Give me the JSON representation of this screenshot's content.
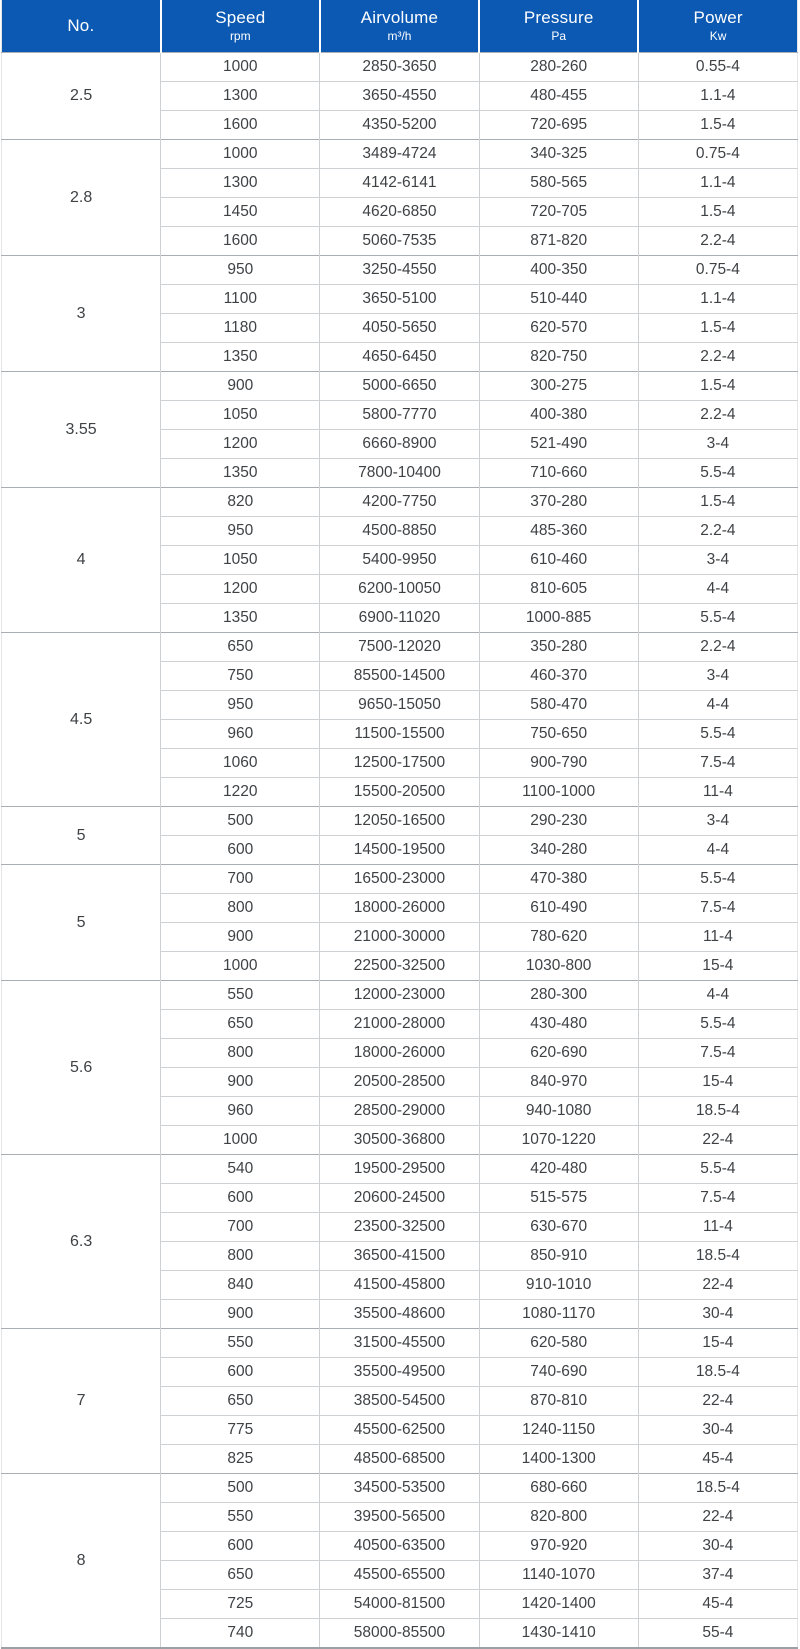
{
  "colors": {
    "header_bg": "#0c59b4",
    "header_text": "#ffffff",
    "cell_text": "#3e4245",
    "inner_border": "#cdd1d4",
    "group_border": "#a9aeb2",
    "bottom_border": "#9aa0a4"
  },
  "chart_data": {
    "type": "table",
    "title": "",
    "legend_position": "none",
    "grid": true,
    "columns": [
      {
        "id": "no",
        "label": "No.",
        "unit": ""
      },
      {
        "id": "speed",
        "label": "Speed",
        "unit": "rpm"
      },
      {
        "id": "airvolume",
        "label": "Airvolume",
        "unit": "m³/h"
      },
      {
        "id": "pressure",
        "label": "Pressure",
        "unit": "Pa"
      },
      {
        "id": "power",
        "label": "Power",
        "unit": "Kw"
      }
    ],
    "groups": [
      {
        "no": "2.5",
        "rows": [
          [
            "1000",
            "2850-3650",
            "280-260",
            "0.55-4"
          ],
          [
            "1300",
            "3650-4550",
            "480-455",
            "1.1-4"
          ],
          [
            "1600",
            "4350-5200",
            "720-695",
            "1.5-4"
          ]
        ]
      },
      {
        "no": "2.8",
        "rows": [
          [
            "1000",
            "3489-4724",
            "340-325",
            "0.75-4"
          ],
          [
            "1300",
            "4142-6141",
            "580-565",
            "1.1-4"
          ],
          [
            "1450",
            "4620-6850",
            "720-705",
            "1.5-4"
          ],
          [
            "1600",
            "5060-7535",
            "871-820",
            "2.2-4"
          ]
        ]
      },
      {
        "no": "3",
        "rows": [
          [
            "950",
            "3250-4550",
            "400-350",
            "0.75-4"
          ],
          [
            "1100",
            "3650-5100",
            "510-440",
            "1.1-4"
          ],
          [
            "1180",
            "4050-5650",
            "620-570",
            "1.5-4"
          ],
          [
            "1350",
            "4650-6450",
            "820-750",
            "2.2-4"
          ]
        ]
      },
      {
        "no": "3.55",
        "rows": [
          [
            "900",
            "5000-6650",
            "300-275",
            "1.5-4"
          ],
          [
            "1050",
            "5800-7770",
            "400-380",
            "2.2-4"
          ],
          [
            "1200",
            "6660-8900",
            "521-490",
            "3-4"
          ],
          [
            "1350",
            "7800-10400",
            "710-660",
            "5.5-4"
          ]
        ]
      },
      {
        "no": "4",
        "rows": [
          [
            "820",
            "4200-7750",
            "370-280",
            "1.5-4"
          ],
          [
            "950",
            "4500-8850",
            "485-360",
            "2.2-4"
          ],
          [
            "1050",
            "5400-9950",
            "610-460",
            "3-4"
          ],
          [
            "1200",
            "6200-10050",
            "810-605",
            "4-4"
          ],
          [
            "1350",
            "6900-11020",
            "1000-885",
            "5.5-4"
          ]
        ]
      },
      {
        "no": "4.5",
        "rows": [
          [
            "650",
            "7500-12020",
            "350-280",
            "2.2-4"
          ],
          [
            "750",
            "85500-14500",
            "460-370",
            "3-4"
          ],
          [
            "950",
            "9650-15050",
            "580-470",
            "4-4"
          ],
          [
            "960",
            "11500-15500",
            "750-650",
            "5.5-4"
          ],
          [
            "1060",
            "12500-17500",
            "900-790",
            "7.5-4"
          ],
          [
            "1220",
            "15500-20500",
            "1100-1000",
            "11-4"
          ]
        ]
      },
      {
        "no": "5",
        "rows": [
          [
            "500",
            "12050-16500",
            "290-230",
            "3-4"
          ],
          [
            "600",
            "14500-19500",
            "340-280",
            "4-4"
          ]
        ]
      },
      {
        "no": "5",
        "rows": [
          [
            "700",
            "16500-23000",
            "470-380",
            "5.5-4"
          ],
          [
            "800",
            "18000-26000",
            "610-490",
            "7.5-4"
          ],
          [
            "900",
            "21000-30000",
            "780-620",
            "11-4"
          ],
          [
            "1000",
            "22500-32500",
            "1030-800",
            "15-4"
          ]
        ]
      },
      {
        "no": "5.6",
        "rows": [
          [
            "550",
            "12000-23000",
            "280-300",
            "4-4"
          ],
          [
            "650",
            "21000-28000",
            "430-480",
            "5.5-4"
          ],
          [
            "800",
            "18000-26000",
            "620-690",
            "7.5-4"
          ],
          [
            "900",
            "20500-28500",
            "840-970",
            "15-4"
          ],
          [
            "960",
            "28500-29000",
            "940-1080",
            "18.5-4"
          ],
          [
            "1000",
            "30500-36800",
            "1070-1220",
            "22-4"
          ]
        ]
      },
      {
        "no": "6.3",
        "rows": [
          [
            "540",
            "19500-29500",
            "420-480",
            "5.5-4"
          ],
          [
            "600",
            "20600-24500",
            "515-575",
            "7.5-4"
          ],
          [
            "700",
            "23500-32500",
            "630-670",
            "11-4"
          ],
          [
            "800",
            "36500-41500",
            "850-910",
            "18.5-4"
          ],
          [
            "840",
            "41500-45800",
            "910-1010",
            "22-4"
          ],
          [
            "900",
            "35500-48600",
            "1080-1170",
            "30-4"
          ]
        ]
      },
      {
        "no": "7",
        "rows": [
          [
            "550",
            "31500-45500",
            "620-580",
            "15-4"
          ],
          [
            "600",
            "35500-49500",
            "740-690",
            "18.5-4"
          ],
          [
            "650",
            "38500-54500",
            "870-810",
            "22-4"
          ],
          [
            "775",
            "45500-62500",
            "1240-1150",
            "30-4"
          ],
          [
            "825",
            "48500-68500",
            "1400-1300",
            "45-4"
          ]
        ]
      },
      {
        "no": "8",
        "rows": [
          [
            "500",
            "34500-53500",
            "680-660",
            "18.5-4"
          ],
          [
            "550",
            "39500-56500",
            "820-800",
            "22-4"
          ],
          [
            "600",
            "40500-63500",
            "970-920",
            "30-4"
          ],
          [
            "650",
            "45500-65500",
            "1140-1070",
            "37-4"
          ],
          [
            "725",
            "54000-81500",
            "1420-1400",
            "45-4"
          ],
          [
            "740",
            "58000-85500",
            "1430-1410",
            "55-4"
          ]
        ]
      }
    ]
  }
}
